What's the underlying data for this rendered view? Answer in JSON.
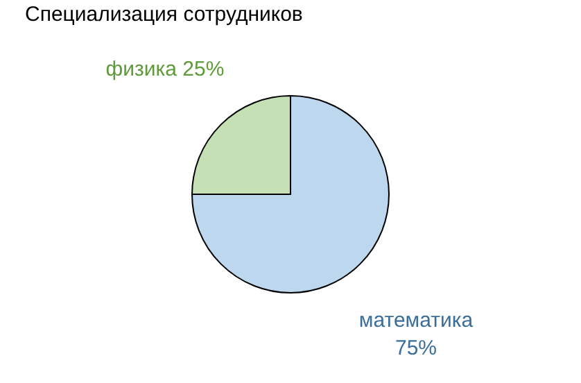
{
  "chart_data": {
    "type": "pie",
    "title": "Специализация сотрудников",
    "categories": [
      "математика",
      "физика"
    ],
    "values": [
      75,
      25
    ],
    "colors": [
      "#bdd7ee",
      "#c5e0b4"
    ],
    "value_labels": [
      "75%",
      "25%"
    ]
  }
}
